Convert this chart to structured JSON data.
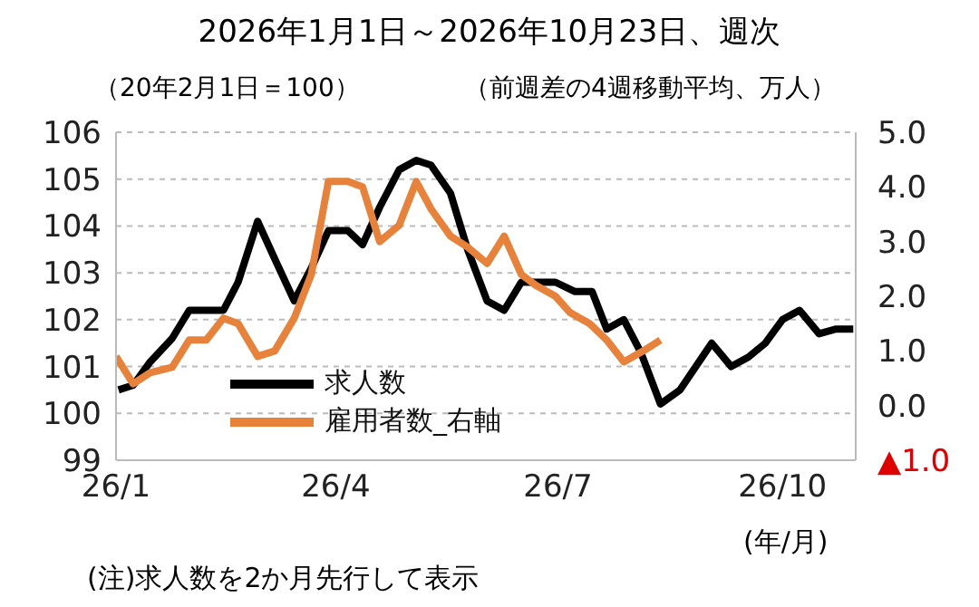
{
  "chart_data": {
    "type": "line",
    "title": "2026年1月1日～2026年10月23日、週次",
    "ylabel": "（20年2月1日＝100）",
    "y2label": "（前週差の4週移動平均、万人）",
    "xlabel": "(年/月)",
    "annotations": [
      "(注)求人数を2か月先行して表示"
    ],
    "series": [
      {
        "name": "求人数",
        "color": "#000000",
        "x": [
          "2026-01-02",
          "2026-01-08",
          "2026-01-15",
          "2026-01-24",
          "2026-01-31",
          "2026-02-07",
          "2026-02-14",
          "2026-02-20",
          "2026-02-28",
          "2026-03-07",
          "2026-03-15",
          "2026-03-22",
          "2026-03-29",
          "2026-04-06",
          "2026-04-12",
          "2026-04-19",
          "2026-04-27",
          "2026-05-04",
          "2026-05-10",
          "2026-05-18",
          "2026-05-25",
          "2026-06-02",
          "2026-06-09",
          "2026-06-16",
          "2026-06-30",
          "2026-07-08",
          "2026-07-15",
          "2026-07-21",
          "2026-07-28",
          "2026-08-04",
          "2026-08-12",
          "2026-08-20",
          "2026-09-02",
          "2026-09-10",
          "2026-09-17",
          "2026-09-24",
          "2026-10-01",
          "2026-10-08",
          "2026-10-16",
          "2026-10-23",
          "2026-10-30"
        ],
        "values": [
          100.5,
          100.6,
          101.1,
          101.6,
          102.2,
          102.2,
          102.2,
          102.8,
          104.1,
          103.3,
          102.4,
          103.1,
          103.9,
          103.9,
          103.6,
          104.4,
          105.2,
          105.4,
          105.3,
          104.7,
          103.5,
          102.4,
          102.2,
          102.8,
          102.8,
          102.6,
          102.6,
          101.8,
          102.0,
          101.3,
          100.2,
          100.5,
          101.5,
          101.0,
          101.2,
          101.5,
          102.0,
          102.2,
          101.7,
          101.8,
          101.8
        ]
      },
      {
        "name": "雇用者数_右軸",
        "color": "#e8823a",
        "axis": "y2",
        "x": [
          "2026-01-01",
          "2026-01-08",
          "2026-01-15",
          "2026-01-24",
          "2026-01-31",
          "2026-02-07",
          "2026-02-14",
          "2026-02-20",
          "2026-02-28",
          "2026-03-07",
          "2026-03-15",
          "2026-03-22",
          "2026-03-29",
          "2026-04-06",
          "2026-04-12",
          "2026-04-19",
          "2026-04-27",
          "2026-05-04",
          "2026-05-10",
          "2026-05-18",
          "2026-05-25",
          "2026-06-02",
          "2026-06-09",
          "2026-06-16",
          "2026-06-22",
          "2026-06-30",
          "2026-07-06",
          "2026-07-14",
          "2026-07-21",
          "2026-07-28",
          "2026-08-05",
          "2026-08-12"
        ],
        "values": [
          0.9,
          0.4,
          0.6,
          0.7,
          1.2,
          1.2,
          1.6,
          1.5,
          0.9,
          1.0,
          1.6,
          2.4,
          4.1,
          4.1,
          4.0,
          3.0,
          3.3,
          4.1,
          3.6,
          3.1,
          2.9,
          2.6,
          3.1,
          2.4,
          2.2,
          2.0,
          1.7,
          1.5,
          1.2,
          0.8,
          1.0,
          1.2
        ]
      }
    ],
    "xlim": [
      "2026-01-01",
      "2026-10-31"
    ],
    "xticks": [
      {
        "value": "2026-01-01",
        "label": "26/1"
      },
      {
        "value": "2026-04-01",
        "label": "26/4"
      },
      {
        "value": "2026-07-01",
        "label": "26/7"
      },
      {
        "value": "2026-10-01",
        "label": "26/10"
      }
    ],
    "ylim": [
      99,
      106
    ],
    "yticks": [
      99,
      100,
      101,
      102,
      103,
      104,
      105,
      106
    ],
    "y2lim": [
      -1,
      5
    ],
    "y2ticks": [
      {
        "value": -1,
        "label": "▲1.0"
      },
      {
        "value": 0,
        "label": "0.0"
      },
      {
        "value": 1,
        "label": "1.0"
      },
      {
        "value": 2,
        "label": "2.0"
      },
      {
        "value": 3,
        "label": "3.0"
      },
      {
        "value": 4,
        "label": "4.0"
      },
      {
        "value": 5,
        "label": "5.0"
      }
    ],
    "grid": "y",
    "legend": "bottom",
    "marker": "none",
    "line_style": "solid"
  }
}
